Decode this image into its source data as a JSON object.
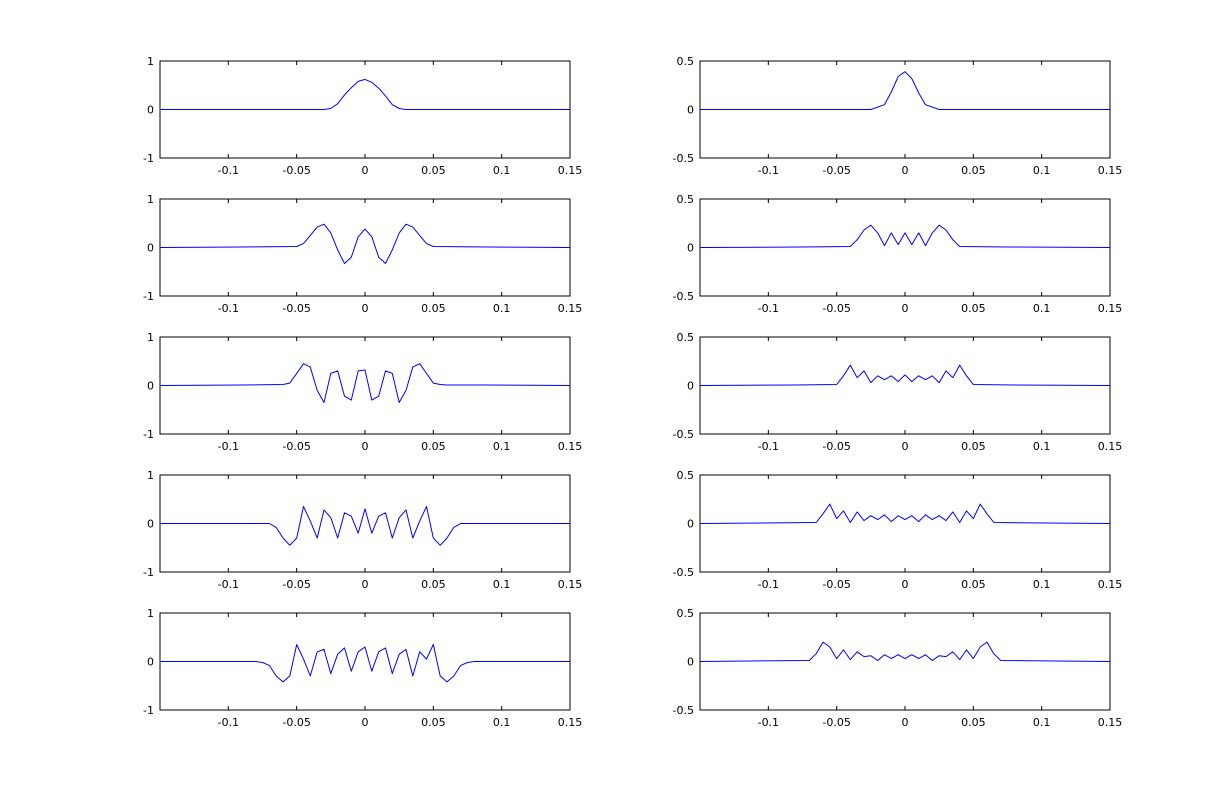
{
  "colors": {
    "line": "#0000ff",
    "axes": "#000000",
    "background": "#ffffff"
  },
  "chart_data": [
    {
      "type": "line",
      "xlim": [
        -0.15,
        0.15
      ],
      "ylim": [
        -1,
        1
      ],
      "xticks": [
        "-0.1",
        "-0.05",
        "0",
        "0.05",
        "0.1",
        "0.15"
      ],
      "yticks": [
        "1",
        "0",
        "-1"
      ],
      "series": [
        {
          "x": [
            -0.15,
            -0.03,
            -0.025,
            -0.02,
            -0.015,
            -0.01,
            -0.005,
            0,
            0.005,
            0.01,
            0.015,
            0.02,
            0.025,
            0.03,
            0.15
          ],
          "y": [
            0,
            0,
            0.02,
            0.12,
            0.3,
            0.45,
            0.58,
            0.62,
            0.56,
            0.44,
            0.28,
            0.1,
            0.02,
            0,
            0
          ]
        }
      ]
    },
    {
      "type": "line",
      "xlim": [
        -0.15,
        0.15
      ],
      "ylim": [
        -0.5,
        0.5
      ],
      "xticks": [
        "-0.1",
        "-0.05",
        "0",
        "0.05",
        "0.1",
        "0.15"
      ],
      "yticks": [
        "0.5",
        "0",
        "-0.5"
      ],
      "series": [
        {
          "x": [
            -0.15,
            -0.025,
            -0.015,
            -0.01,
            -0.005,
            0,
            0.005,
            0.01,
            0.015,
            0.025,
            0.15
          ],
          "y": [
            0,
            0,
            0.05,
            0.18,
            0.34,
            0.39,
            0.32,
            0.17,
            0.05,
            0,
            0
          ]
        }
      ]
    },
    {
      "type": "line",
      "xlim": [
        -0.15,
        0.15
      ],
      "ylim": [
        -1,
        1
      ],
      "xticks": [
        "-0.1",
        "-0.05",
        "0",
        "0.05",
        "0.1",
        "0.15"
      ],
      "yticks": [
        "1",
        "0",
        "-1"
      ],
      "series": [
        {
          "x": [
            -0.15,
            -0.09,
            -0.05,
            -0.045,
            -0.04,
            -0.035,
            -0.03,
            -0.025,
            -0.02,
            -0.015,
            -0.01,
            -0.005,
            0,
            0.005,
            0.01,
            0.015,
            0.02,
            0.025,
            0.03,
            0.035,
            0.04,
            0.045,
            0.05,
            0.09,
            0.15
          ],
          "y": [
            0,
            0.01,
            0.02,
            0.08,
            0.25,
            0.42,
            0.48,
            0.3,
            -0.05,
            -0.33,
            -0.2,
            0.22,
            0.38,
            0.22,
            -0.2,
            -0.33,
            -0.05,
            0.3,
            0.48,
            0.42,
            0.25,
            0.08,
            0.02,
            0.01,
            0
          ]
        }
      ]
    },
    {
      "type": "line",
      "xlim": [
        -0.15,
        0.15
      ],
      "ylim": [
        -0.5,
        0.5
      ],
      "xticks": [
        "-0.1",
        "-0.05",
        "0",
        "0.05",
        "0.1",
        "0.15"
      ],
      "yticks": [
        "0.5",
        "0",
        "-0.5"
      ],
      "series": [
        {
          "x": [
            -0.15,
            -0.075,
            -0.04,
            -0.035,
            -0.03,
            -0.025,
            -0.02,
            -0.015,
            -0.01,
            -0.005,
            0,
            0.005,
            0.01,
            0.015,
            0.02,
            0.025,
            0.03,
            0.035,
            0.04,
            0.075,
            0.15
          ],
          "y": [
            0,
            0.005,
            0.01,
            0.08,
            0.18,
            0.23,
            0.15,
            0.02,
            0.15,
            0.03,
            0.15,
            0.03,
            0.15,
            0.02,
            0.15,
            0.23,
            0.18,
            0.08,
            0.01,
            0.005,
            0
          ]
        }
      ]
    },
    {
      "type": "line",
      "xlim": [
        -0.15,
        0.15
      ],
      "ylim": [
        -1,
        1
      ],
      "xticks": [
        "-0.1",
        "-0.05",
        "0",
        "0.05",
        "0.1",
        "0.15"
      ],
      "yticks": [
        "1",
        "0",
        "-1"
      ],
      "series": [
        {
          "x": [
            -0.15,
            -0.09,
            -0.06,
            -0.055,
            -0.05,
            -0.045,
            -0.04,
            -0.035,
            -0.03,
            -0.025,
            -0.02,
            -0.015,
            -0.01,
            -0.005,
            0,
            0.005,
            0.01,
            0.015,
            0.02,
            0.025,
            0.03,
            0.035,
            0.04,
            0.045,
            0.05,
            0.055,
            0.06,
            0.09,
            0.15
          ],
          "y": [
            0,
            0.01,
            0.02,
            0.05,
            0.25,
            0.45,
            0.38,
            -0.1,
            -0.35,
            0.25,
            0.3,
            -0.22,
            -0.3,
            0.3,
            0.32,
            -0.3,
            -0.22,
            0.3,
            0.25,
            -0.35,
            -0.1,
            0.38,
            0.45,
            0.25,
            0.05,
            0.02,
            0.01,
            0.01,
            0
          ]
        }
      ]
    },
    {
      "type": "line",
      "xlim": [
        -0.15,
        0.15
      ],
      "ylim": [
        -0.5,
        0.5
      ],
      "xticks": [
        "-0.1",
        "-0.05",
        "0",
        "0.05",
        "0.1",
        "0.15"
      ],
      "yticks": [
        "0.5",
        "0",
        "-0.5"
      ],
      "series": [
        {
          "x": [
            -0.15,
            -0.08,
            -0.05,
            -0.045,
            -0.04,
            -0.035,
            -0.03,
            -0.025,
            -0.02,
            -0.015,
            -0.01,
            -0.005,
            0,
            0.005,
            0.01,
            0.015,
            0.02,
            0.025,
            0.03,
            0.035,
            0.04,
            0.045,
            0.05,
            0.08,
            0.15
          ],
          "y": [
            0,
            0.005,
            0.01,
            0.1,
            0.21,
            0.08,
            0.15,
            0.03,
            0.1,
            0.06,
            0.1,
            0.04,
            0.11,
            0.04,
            0.1,
            0.06,
            0.1,
            0.03,
            0.15,
            0.08,
            0.21,
            0.1,
            0.01,
            0.005,
            0
          ]
        }
      ]
    },
    {
      "type": "line",
      "xlim": [
        -0.15,
        0.15
      ],
      "ylim": [
        -1,
        1
      ],
      "xticks": [
        "-0.1",
        "-0.05",
        "0",
        "0.05",
        "0.1",
        "0.15"
      ],
      "yticks": [
        "1",
        "0",
        "-1"
      ],
      "series": [
        {
          "x": [
            -0.15,
            -0.07,
            -0.065,
            -0.06,
            -0.055,
            -0.05,
            -0.045,
            -0.04,
            -0.035,
            -0.03,
            -0.025,
            -0.02,
            -0.015,
            -0.01,
            -0.005,
            0,
            0.005,
            0.01,
            0.015,
            0.02,
            0.025,
            0.03,
            0.035,
            0.04,
            0.045,
            0.05,
            0.055,
            0.06,
            0.065,
            0.07,
            0.15
          ],
          "y": [
            0,
            0,
            -0.08,
            -0.3,
            -0.45,
            -0.3,
            0.35,
            0.05,
            -0.3,
            0.28,
            0.12,
            -0.3,
            0.22,
            0.15,
            -0.2,
            0.3,
            -0.2,
            0.15,
            0.22,
            -0.3,
            0.12,
            0.28,
            -0.3,
            0.05,
            0.35,
            -0.3,
            -0.45,
            -0.3,
            -0.08,
            0,
            0
          ]
        }
      ]
    },
    {
      "type": "line",
      "xlim": [
        -0.15,
        0.15
      ],
      "ylim": [
        -0.5,
        0.5
      ],
      "xticks": [
        "-0.1",
        "-0.05",
        "0",
        "0.05",
        "0.1",
        "0.15"
      ],
      "yticks": [
        "0.5",
        "0",
        "-0.5"
      ],
      "series": [
        {
          "x": [
            -0.15,
            -0.065,
            -0.06,
            -0.055,
            -0.05,
            -0.045,
            -0.04,
            -0.035,
            -0.03,
            -0.025,
            -0.02,
            -0.015,
            -0.01,
            -0.005,
            0,
            0.005,
            0.01,
            0.015,
            0.02,
            0.025,
            0.03,
            0.035,
            0.04,
            0.045,
            0.05,
            0.055,
            0.06,
            0.065,
            0.15
          ],
          "y": [
            0,
            0.01,
            0.1,
            0.2,
            0.05,
            0.13,
            0.01,
            0.12,
            0.03,
            0.08,
            0.04,
            0.09,
            0.02,
            0.08,
            0.04,
            0.08,
            0.02,
            0.09,
            0.04,
            0.08,
            0.03,
            0.12,
            0.01,
            0.13,
            0.05,
            0.2,
            0.1,
            0.01,
            0
          ]
        }
      ]
    },
    {
      "type": "line",
      "xlim": [
        -0.15,
        0.15
      ],
      "ylim": [
        -1,
        1
      ],
      "xticks": [
        "-0.1",
        "-0.05",
        "0",
        "0.05",
        "0.1",
        "0.15"
      ],
      "yticks": [
        "1",
        "0",
        "-1"
      ],
      "series": [
        {
          "x": [
            -0.15,
            -0.08,
            -0.075,
            -0.07,
            -0.065,
            -0.06,
            -0.055,
            -0.05,
            -0.045,
            -0.04,
            -0.035,
            -0.03,
            -0.025,
            -0.02,
            -0.015,
            -0.01,
            -0.005,
            0,
            0.005,
            0.01,
            0.015,
            0.02,
            0.025,
            0.03,
            0.035,
            0.04,
            0.045,
            0.05,
            0.055,
            0.06,
            0.065,
            0.07,
            0.075,
            0.08,
            0.15
          ],
          "y": [
            0,
            0,
            -0.02,
            -0.08,
            -0.3,
            -0.42,
            -0.3,
            0.35,
            0.05,
            -0.3,
            0.2,
            0.25,
            -0.25,
            0.15,
            0.28,
            -0.2,
            0.2,
            0.3,
            -0.2,
            0.2,
            0.28,
            -0.25,
            0.15,
            0.25,
            -0.3,
            0.2,
            0.05,
            0.35,
            -0.3,
            -0.42,
            -0.3,
            -0.08,
            -0.02,
            0,
            0
          ]
        }
      ]
    },
    {
      "type": "line",
      "xlim": [
        -0.15,
        0.15
      ],
      "ylim": [
        -0.5,
        0.5
      ],
      "xticks": [
        "-0.1",
        "-0.05",
        "0",
        "0.05",
        "0.1",
        "0.15"
      ],
      "yticks": [
        "0.5",
        "0",
        "-0.5"
      ],
      "series": [
        {
          "x": [
            -0.15,
            -0.07,
            -0.065,
            -0.06,
            -0.055,
            -0.05,
            -0.045,
            -0.04,
            -0.035,
            -0.03,
            -0.025,
            -0.02,
            -0.015,
            -0.01,
            -0.005,
            0,
            0.005,
            0.01,
            0.015,
            0.02,
            0.025,
            0.03,
            0.035,
            0.04,
            0.045,
            0.05,
            0.055,
            0.06,
            0.065,
            0.07,
            0.15
          ],
          "y": [
            0,
            0.01,
            0.08,
            0.2,
            0.15,
            0.03,
            0.12,
            0.02,
            0.1,
            0.05,
            0.06,
            0.01,
            0.07,
            0.03,
            0.07,
            0.03,
            0.07,
            0.03,
            0.07,
            0.01,
            0.06,
            0.05,
            0.1,
            0.02,
            0.12,
            0.03,
            0.15,
            0.2,
            0.08,
            0.01,
            0
          ]
        }
      ]
    }
  ]
}
